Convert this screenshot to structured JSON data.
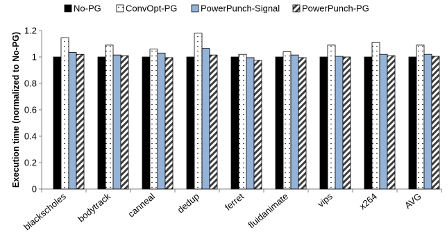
{
  "chart_data": {
    "type": "bar",
    "title": "",
    "xlabel": "",
    "ylabel": "Execution time (normalized to No-PG)",
    "ylim": [
      0,
      1.2
    ],
    "yticks": [
      0,
      0.2,
      0.4,
      0.6,
      0.8,
      1,
      1.2
    ],
    "ytick_labels": [
      "0",
      "0.2",
      "0.4",
      "0.6",
      "0.8",
      "1",
      "1.2"
    ],
    "grid": false,
    "legend_position": "top",
    "categories": [
      "blackscholes",
      "bodytrack",
      "canneal",
      "dedup",
      "ferret",
      "fluidanimate",
      "vips",
      "x264",
      "AVG"
    ],
    "series": [
      {
        "name": "No-PG",
        "pattern": "solid-black",
        "values": [
          1,
          1,
          1,
          1,
          1,
          1,
          1,
          1,
          1
        ]
      },
      {
        "name": "ConvOpt-PG",
        "pattern": "white-dotted",
        "values": [
          1.145,
          1.09,
          1.06,
          1.18,
          1.02,
          1.04,
          1.09,
          1.11,
          1.09
        ]
      },
      {
        "name": "PowerPunch-Signal",
        "pattern": "light-blue",
        "values": [
          1.035,
          1.015,
          1.03,
          1.065,
          0.995,
          1.015,
          1.005,
          1.02,
          1.02
        ]
      },
      {
        "name": "PowerPunch-PG",
        "pattern": "diagonal-hatch",
        "values": [
          1.02,
          1.01,
          0.995,
          1.015,
          0.975,
          0.995,
          1.0,
          1.01,
          1.005
        ]
      }
    ],
    "colors": {
      "no_pg": "#000000",
      "convopt_pg": "#ffffff",
      "powerpunch_signal": "#95b3d7",
      "powerpunch_pg_stripe": "#3f3f3f",
      "axis": "#808080"
    }
  }
}
